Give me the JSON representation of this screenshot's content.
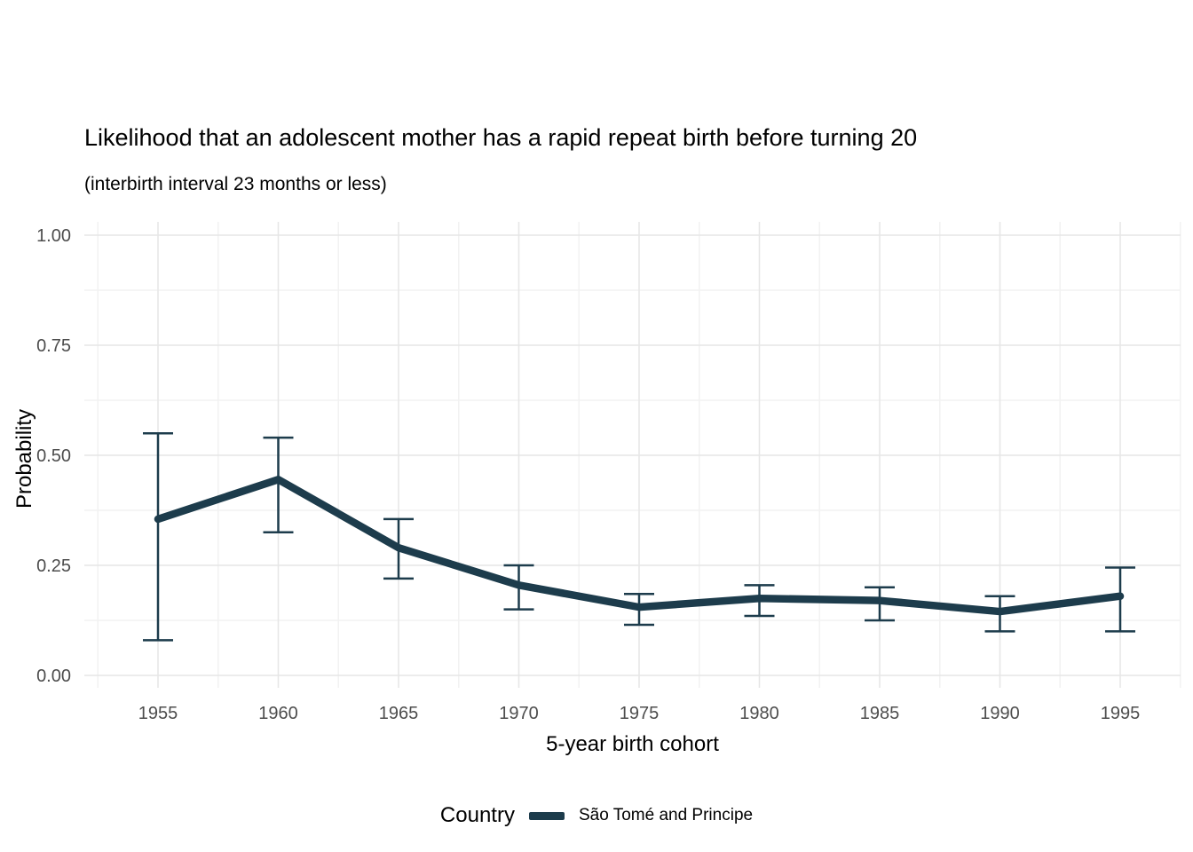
{
  "chart_data": {
    "type": "line",
    "title": "Likelihood that an adolescent mother has a rapid repeat birth before turning 20",
    "subtitle": "(interbirth interval 23 months or less)",
    "xlabel": "5-year birth cohort",
    "ylabel": "Probability",
    "x": [
      1955,
      1960,
      1965,
      1970,
      1975,
      1980,
      1985,
      1990,
      1995
    ],
    "series": [
      {
        "name": "São Tomé and Principe",
        "values": [
          0.355,
          0.445,
          0.29,
          0.205,
          0.155,
          0.175,
          0.17,
          0.145,
          0.18
        ],
        "ci_low": [
          0.08,
          0.325,
          0.22,
          0.15,
          0.115,
          0.135,
          0.125,
          0.1,
          0.1
        ],
        "ci_high": [
          0.55,
          0.54,
          0.355,
          0.25,
          0.185,
          0.205,
          0.2,
          0.18,
          0.245
        ]
      }
    ],
    "ylim": [
      0,
      1
    ],
    "yticks": [
      0,
      0.25,
      0.5,
      0.75,
      1
    ],
    "ytick_labels": [
      "0.00",
      "0.25",
      "0.50",
      "0.75",
      "1.00"
    ],
    "xticks": [
      1955,
      1960,
      1965,
      1970,
      1975,
      1980,
      1985,
      1990,
      1995
    ],
    "grid": true,
    "legend": {
      "title": "Country",
      "position": "bottom",
      "entries": [
        "São Tomé and Principe"
      ]
    },
    "colors": {
      "line": "#1d3c4c",
      "grid_major": "#e6e6e6",
      "grid_minor": "#f2f2f2",
      "tick_text": "#4d4d4d",
      "text": "#000000",
      "background": "#ffffff"
    }
  }
}
